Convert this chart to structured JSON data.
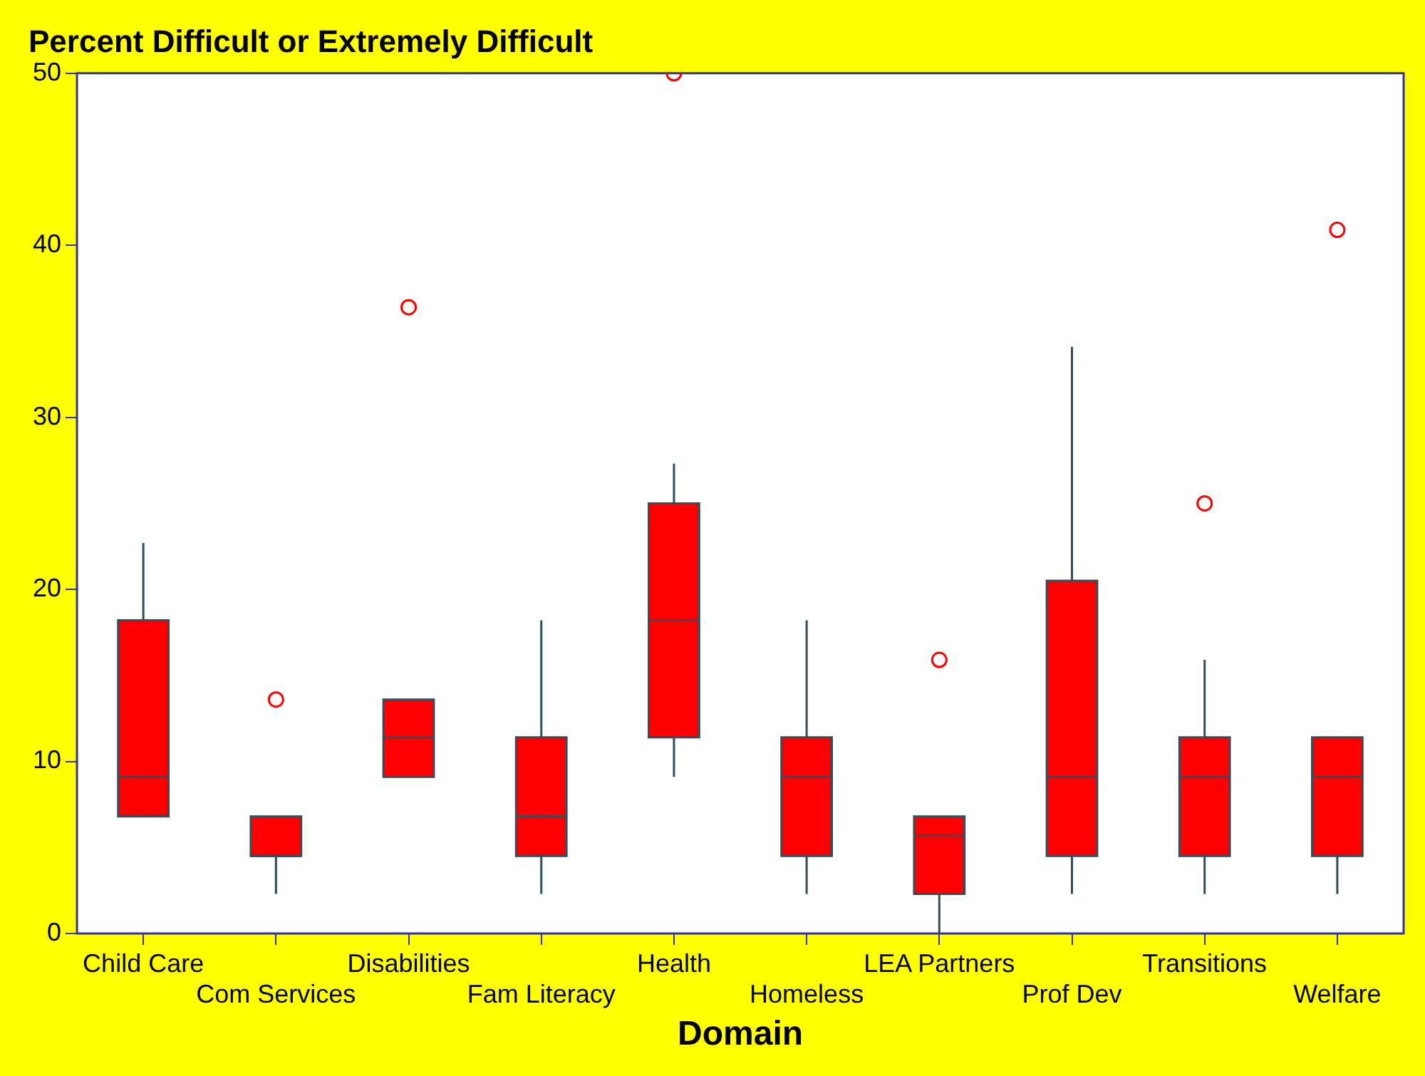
{
  "chart_data": {
    "type": "box",
    "title": "Percent Difficult or Extremely Difficult",
    "xlabel": "Domain",
    "categories": [
      "Child Care",
      "Com Services",
      "Disabilities",
      "Fam Literacy",
      "Health",
      "Homeless",
      "LEA Partners",
      "Prof Dev",
      "Transitions",
      "Welfare"
    ],
    "color": "#ff0000",
    "boxes": [
      {
        "low": 6.8,
        "q1": 6.8,
        "median": 9.1,
        "q3": 18.2,
        "high": 22.7
      },
      {
        "low": 2.3,
        "q1": 4.5,
        "median": 4.5,
        "q3": 6.8,
        "high": 6.8,
        "outliers": [
          13.6
        ]
      },
      {
        "low": 9.1,
        "q1": 9.1,
        "median": 11.4,
        "q3": 13.6,
        "high": 13.6,
        "outliers": [
          36.4
        ]
      },
      {
        "low": 2.3,
        "q1": 4.5,
        "median": 6.8,
        "q3": 11.4,
        "high": 18.2
      },
      {
        "low": 9.1,
        "q1": 11.4,
        "median": 18.2,
        "q3": 25,
        "high": 27.3,
        "outliers": [
          50
        ]
      },
      {
        "low": 2.3,
        "q1": 4.5,
        "median": 9.1,
        "q3": 11.4,
        "high": 18.2
      },
      {
        "low": 0,
        "q1": 2.3,
        "median": 5.7,
        "q3": 6.8,
        "high": 6.8,
        "outliers": [
          15.9
        ]
      },
      {
        "low": 2.3,
        "q1": 4.5,
        "median": 9.1,
        "q3": 20.5,
        "high": 34.1
      },
      {
        "low": 2.3,
        "q1": 4.5,
        "median": 9.1,
        "q3": 11.4,
        "high": 15.9,
        "outliers": [
          25
        ]
      },
      {
        "low": 2.3,
        "q1": 4.5,
        "median": 9.1,
        "q3": 11.4,
        "high": 11.4,
        "outliers": [
          40.9
        ]
      }
    ],
    "ylim": [
      0,
      50
    ],
    "yticks": [
      0,
      10,
      20,
      30,
      40,
      50
    ],
    "grid": false,
    "legend": false
  }
}
